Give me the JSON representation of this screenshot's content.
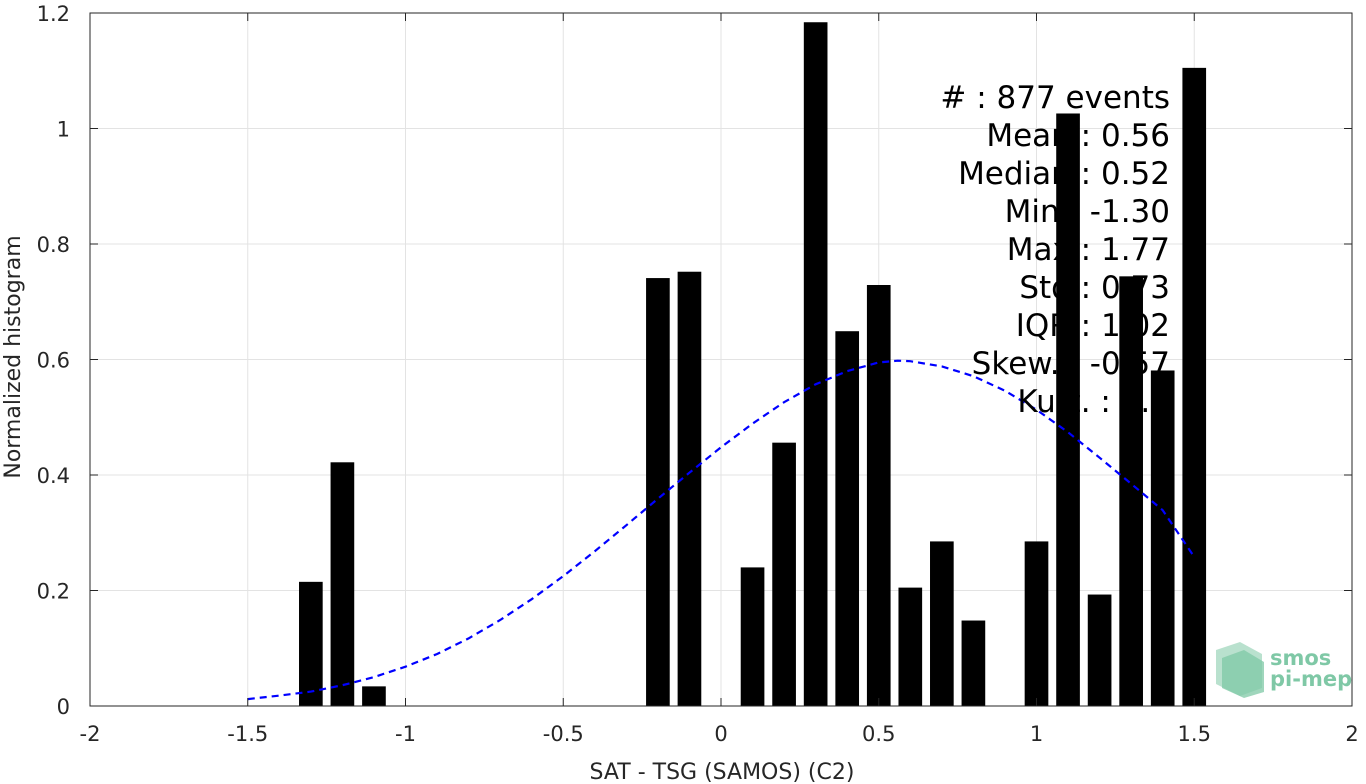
{
  "chart_data": {
    "type": "bar",
    "xlabel": "SAT - TSG (SAMOS) (C2)",
    "ylabel": "Normalized histogram",
    "xlim": [
      -2,
      2
    ],
    "ylim": [
      0,
      1.2
    ],
    "xticks": [
      -2,
      -1.5,
      -1,
      -0.5,
      0,
      0.5,
      1,
      1.5,
      2
    ],
    "xtick_labels": [
      "-2",
      "-1.5",
      "-1",
      "-0.5",
      "0",
      "0.5",
      "1",
      "1.5",
      "2"
    ],
    "yticks": [
      0,
      0.2,
      0.4,
      0.6,
      0.8,
      1,
      1.2
    ],
    "ytick_labels": [
      "0",
      "0.2",
      "0.4",
      "0.6",
      "0.8",
      "1",
      "1.2"
    ],
    "grid": true,
    "bar_color": "#000000",
    "bar_width": 0.075,
    "x": [
      -1.3,
      -1.2,
      -1.1,
      -0.2,
      -0.1,
      0.1,
      0.2,
      0.3,
      0.4,
      0.5,
      0.6,
      0.7,
      0.8,
      1.0,
      1.1,
      1.2,
      1.3,
      1.4,
      1.5
    ],
    "values": [
      0.215,
      0.422,
      0.034,
      0.741,
      0.752,
      0.24,
      0.456,
      1.184,
      0.649,
      0.729,
      0.205,
      0.285,
      0.148,
      0.285,
      1.026,
      0.193,
      0.744,
      0.581,
      1.105
    ],
    "fit_curve": {
      "style": "dashed",
      "color": "#0000ff",
      "x": [
        -1.5,
        -1.4,
        -1.3,
        -1.2,
        -1.1,
        -1.0,
        -0.9,
        -0.8,
        -0.7,
        -0.6,
        -0.5,
        -0.4,
        -0.3,
        -0.2,
        -0.1,
        0.0,
        0.1,
        0.2,
        0.3,
        0.4,
        0.5,
        0.56,
        0.6,
        0.7,
        0.8,
        0.9,
        1.0,
        1.1,
        1.2,
        1.3,
        1.4,
        1.5
      ],
      "y": [
        0.012,
        0.018,
        0.025,
        0.036,
        0.05,
        0.068,
        0.09,
        0.117,
        0.149,
        0.185,
        0.225,
        0.268,
        0.313,
        0.359,
        0.404,
        0.448,
        0.489,
        0.526,
        0.557,
        0.58,
        0.595,
        0.598,
        0.597,
        0.588,
        0.571,
        0.546,
        0.513,
        0.474,
        0.43,
        0.385,
        0.339,
        0.258
      ]
    },
    "annotations": [
      "#  : 877 events",
      "Mean : 0.56",
      "Median : 0.52",
      "Min : -1.30",
      "Max : 1.77",
      "Std : 0.73",
      "IQR : 1.02",
      "Skew. : -0.57",
      "Kurt. : 3.0"
    ]
  },
  "logo": {
    "line1": "smos",
    "line2": "pi-mep",
    "color": "#7fc8a6"
  }
}
